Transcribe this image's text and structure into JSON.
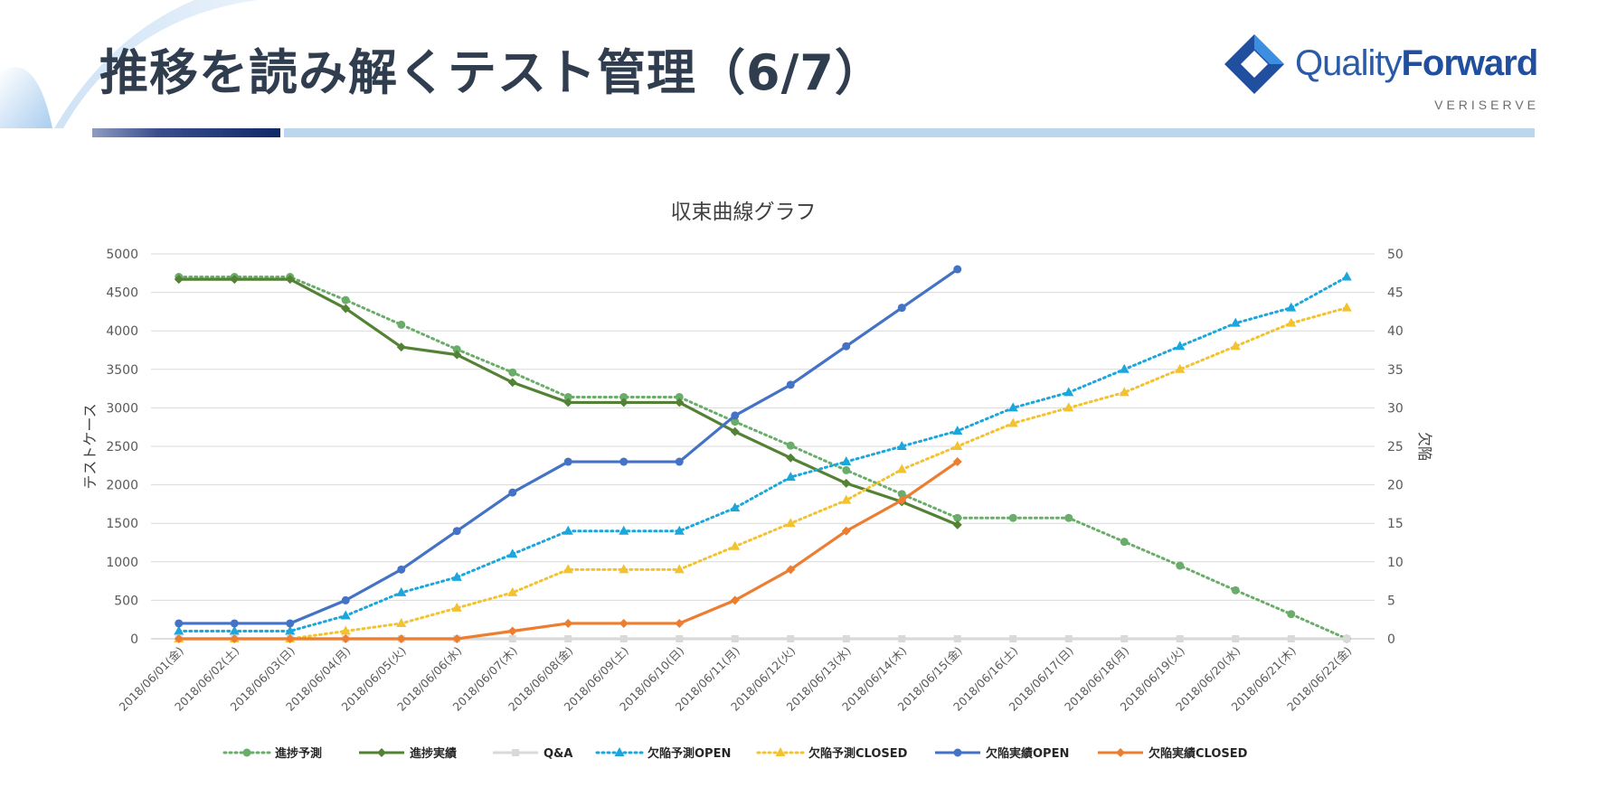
{
  "header": {
    "title": "推移を読み解くテスト管理（6/7）",
    "logo": {
      "brand_light": "Quality",
      "brand_bold": "Forward",
      "company": "VERISERVE"
    }
  },
  "colors": {
    "title": "#2f3d4f",
    "accent_dark": "#0e2a66",
    "accent_light": "#bcd6ec",
    "logo_blue": "#1f4f9e"
  },
  "chart_data": {
    "type": "line",
    "title": "収束曲線グラフ",
    "ylabel": "テストケース",
    "y2label": "欠陥",
    "ylim": [
      0,
      5000
    ],
    "y2lim": [
      0,
      50
    ],
    "yticks": [
      0,
      500,
      1000,
      1500,
      2000,
      2500,
      3000,
      3500,
      4000,
      4500,
      5000
    ],
    "y2ticks": [
      0,
      5,
      10,
      15,
      20,
      25,
      30,
      35,
      40,
      45,
      50
    ],
    "grid": true,
    "legend_position": "bottom",
    "categories": [
      "2018/06/01(金)",
      "2018/06/02(土)",
      "2018/06/03(日)",
      "2018/06/04(月)",
      "2018/06/05(火)",
      "2018/06/06(水)",
      "2018/06/07(木)",
      "2018/06/08(金)",
      "2018/06/09(土)",
      "2018/06/10(日)",
      "2018/06/11(月)",
      "2018/06/12(火)",
      "2018/06/13(水)",
      "2018/06/14(木)",
      "2018/06/15(金)",
      "2018/06/16(土)",
      "2018/06/17(日)",
      "2018/06/18(月)",
      "2018/06/19(火)",
      "2018/06/20(水)",
      "2018/06/21(木)",
      "2018/06/22(金)"
    ],
    "series": [
      {
        "name": "進捗予測",
        "axis": "left",
        "color": "#6aad6a",
        "dash": "dot",
        "marker": "circle",
        "values": [
          4700,
          4700,
          4700,
          4400,
          4080,
          3760,
          3460,
          3140,
          3140,
          3140,
          2820,
          2510,
          2190,
          1880,
          1570,
          1570,
          1570,
          1260,
          950,
          630,
          320,
          0
        ]
      },
      {
        "name": "進捗実績",
        "axis": "left",
        "color": "#548235",
        "dash": "solid",
        "marker": "diamond",
        "values": [
          4670,
          4670,
          4670,
          4290,
          3790,
          3690,
          3330,
          3070,
          3070,
          3070,
          2690,
          2350,
          2020,
          1780,
          1480,
          null,
          null,
          null,
          null,
          null,
          null,
          null
        ]
      },
      {
        "name": "Q&A",
        "axis": "right",
        "color": "#d9d9d9",
        "dash": "solid",
        "marker": "square",
        "values": [
          0,
          0,
          0,
          0,
          0,
          0,
          0,
          0,
          0,
          0,
          0,
          0,
          0,
          0,
          0,
          0,
          0,
          0,
          0,
          0,
          0,
          0
        ]
      },
      {
        "name": "欠陥予測OPEN",
        "axis": "right",
        "color": "#1ba6dc",
        "dash": "dot",
        "marker": "triangle",
        "values": [
          1,
          1,
          1,
          3,
          6,
          8,
          11,
          14,
          14,
          14,
          17,
          21,
          23,
          25,
          27,
          30,
          32,
          35,
          38,
          41,
          43,
          47
        ]
      },
      {
        "name": "欠陥予測CLOSED",
        "axis": "right",
        "color": "#f2c230",
        "dash": "dot",
        "marker": "triangle",
        "values": [
          0,
          0,
          0,
          1,
          2,
          4,
          6,
          9,
          9,
          9,
          12,
          15,
          18,
          22,
          25,
          28,
          30,
          32,
          35,
          38,
          41,
          43
        ]
      },
      {
        "name": "欠陥実績OPEN",
        "axis": "right",
        "color": "#4472c4",
        "dash": "solid",
        "marker": "circle",
        "values": [
          2,
          2,
          2,
          5,
          9,
          14,
          19,
          23,
          23,
          23,
          29,
          33,
          38,
          43,
          48,
          null,
          null,
          null,
          null,
          null,
          null,
          null
        ]
      },
      {
        "name": "欠陥実績CLOSED",
        "axis": "right",
        "color": "#ed7d31",
        "dash": "solid",
        "marker": "diamond",
        "values": [
          0,
          0,
          0,
          0,
          0,
          0,
          1,
          2,
          2,
          2,
          5,
          9,
          14,
          18,
          23,
          null,
          null,
          null,
          null,
          null,
          null,
          null
        ]
      }
    ]
  }
}
